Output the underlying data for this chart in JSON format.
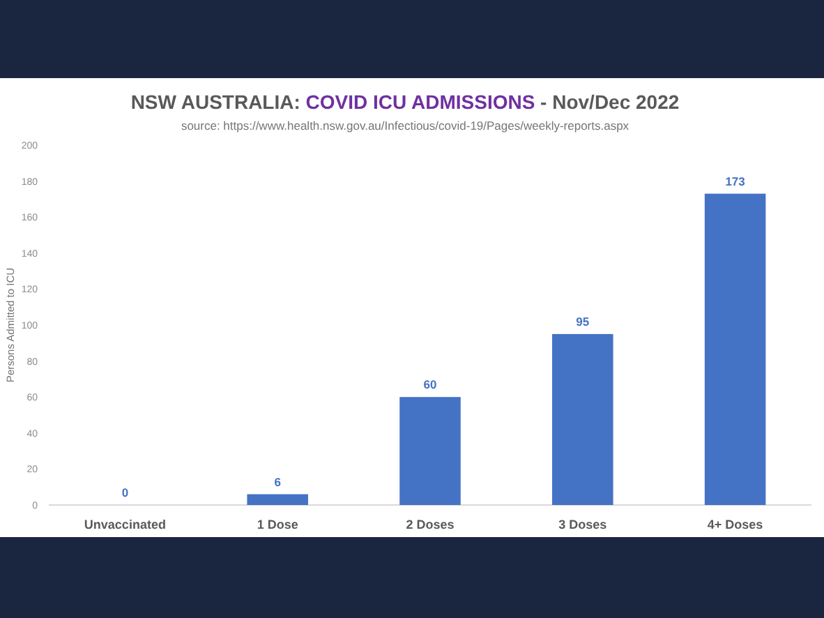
{
  "chart_data": {
    "type": "bar",
    "title": "NSW AUSTRALIA: COVID ICU ADMISSIONS - Nov/Dec 2022",
    "annotations": [
      "source: https://www.health.nsw.gov.au/Infectious/covid-19/Pages/weekly-reports.aspx"
    ],
    "ylabel": "Persons Admitted to ICU",
    "categories": [
      "Unvaccinated",
      "1 Dose",
      "2 Doses",
      "3 Doses",
      "4+ Doses"
    ],
    "values": [
      0,
      6,
      60,
      95,
      173
    ],
    "color": "#4472c4",
    "ylim": [
      0,
      200
    ],
    "yticks": [
      0,
      20,
      40,
      60,
      80,
      100,
      120,
      140,
      160,
      180,
      200
    ],
    "data_labels": true
  }
}
